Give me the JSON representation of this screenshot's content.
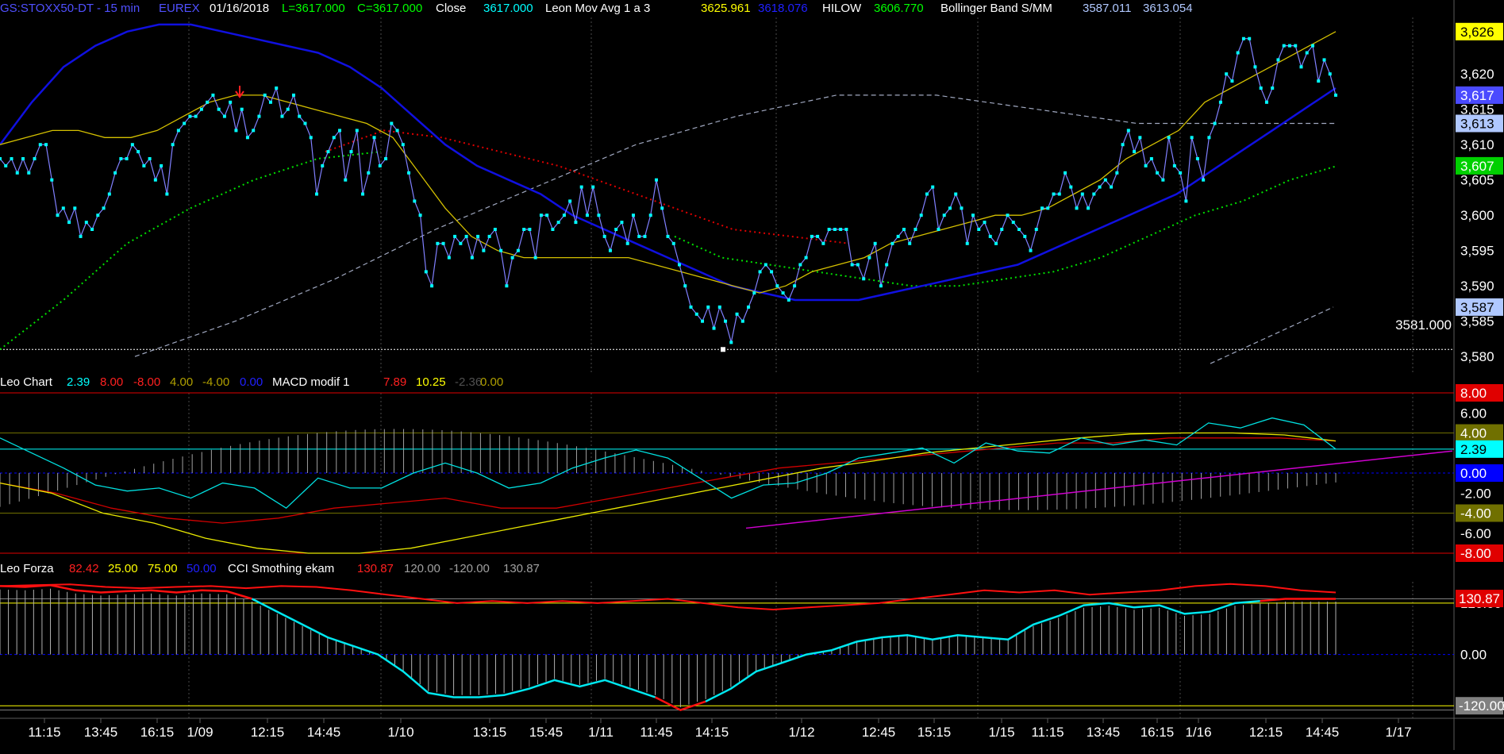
{
  "header": {
    "symbol": "GS:STOXX50-DT - 15 min",
    "exchange": "EUREX",
    "date": "01/16/2018",
    "low": "L=3617.000",
    "close": "C=3617.000",
    "close_label": "Close",
    "close_value": "3617.000",
    "ma_label": "Leon Mov Avg 1 a 3",
    "ma_val1": "3625.961",
    "ma_val2": "3618.076",
    "hilow_label": "HILOW",
    "hilow_val": "3606.770",
    "bb_label": "Bollinger Band S/MM",
    "bb_val1": "3587.011",
    "bb_val2": "3613.054"
  },
  "panel2_header": {
    "name": "Leo Chart",
    "v1": "2.39",
    "v2": "8.00",
    "v3": "-8.00",
    "v4": "4.00",
    "v5": "-4.00",
    "v6": "0.00",
    "macd_label": "MACD modif 1",
    "m1": "7.89",
    "m2": "10.25",
    "m3": "-2.36",
    "m4": "0.00"
  },
  "panel3_header": {
    "name": "Leo Forza",
    "v1": "82.42",
    "v2": "25.00",
    "v3": "75.00",
    "v4": "50.00",
    "cci_label": "CCI Smothing ekam",
    "c1": "130.87",
    "c2": "120.00",
    "c3": "-120.00",
    "c4": "130.87"
  },
  "price_axis": {
    "ticks": [
      "3,620",
      "3,615",
      "3,610",
      "3,605",
      "3,600",
      "3,595",
      "3,590",
      "3,585",
      "3,580"
    ],
    "tick_values": [
      3620,
      3615,
      3610,
      3605,
      3600,
      3595,
      3590,
      3585,
      3580
    ],
    "badges": [
      {
        "text": "3,626",
        "value": 3626,
        "bg": "#ffff00",
        "fg": "#000000"
      },
      {
        "text": "3,617",
        "value": 3617,
        "bg": "#4a4aff",
        "fg": "#ffffff"
      },
      {
        "text": "3,613",
        "value": 3613,
        "bg": "#b0c8ff",
        "fg": "#000000"
      },
      {
        "text": "3,607",
        "value": 3607,
        "bg": "#00d000",
        "fg": "#ffffff"
      },
      {
        "text": "3,587",
        "value": 3587,
        "bg": "#b0c8ff",
        "fg": "#000000"
      }
    ],
    "ref_line_label": "3581.000",
    "ref_line_value": 3581
  },
  "panel2_axis": {
    "ticks": [
      "6.00",
      "-2.00",
      "-6.00"
    ],
    "tick_values": [
      6,
      -2,
      -6
    ],
    "badges": [
      {
        "text": "8.00",
        "value": 8,
        "bg": "#e00000",
        "fg": "#ffffff"
      },
      {
        "text": "4.00",
        "value": 4,
        "bg": "#707000",
        "fg": "#ffffff"
      },
      {
        "text": "2.39",
        "value": 2.39,
        "bg": "#00ffff",
        "fg": "#000000"
      },
      {
        "text": "0.00",
        "value": 0,
        "bg": "#0000ff",
        "fg": "#ffffff"
      },
      {
        "text": "-4.00",
        "value": -4,
        "bg": "#707000",
        "fg": "#ffffff"
      },
      {
        "text": "-8.00",
        "value": -8,
        "bg": "#e00000",
        "fg": "#ffffff"
      }
    ]
  },
  "panel3_axis": {
    "ticks": [
      "0.00",
      "120.00",
      "-120.00"
    ],
    "tick_values": [
      0,
      120,
      -120
    ],
    "badges": [
      {
        "text": "130.87",
        "value": 130.87,
        "bg": "#e00000",
        "fg": "#ffffff"
      },
      {
        "text": "-120.00",
        "value": -120,
        "bg": "#808080",
        "fg": "#ffffff"
      }
    ]
  },
  "time_axis": {
    "labels": [
      "11:15",
      "13:45",
      "16:15",
      "1/09",
      "12:15",
      "14:45",
      "1/10",
      "13:15",
      "15:45",
      "1/11",
      "11:45",
      "14:15",
      "1/12",
      "12:45",
      "15:15",
      "1/15",
      "11:15",
      "13:45",
      "16:15",
      "1/16",
      "12:15",
      "14:45",
      "1/17"
    ],
    "separator_labels": [
      "1/09",
      "1/10",
      "1/11",
      "1/12",
      "1/15",
      "1/16",
      "1/17"
    ]
  },
  "colors": {
    "price": "#8080ff",
    "price_marker": "#00ffff",
    "ma_blue": "#1010e0",
    "ma_yellow": "#d4c000",
    "hilow_green": "#00e000",
    "hilow_red": "#e00000",
    "bollinger": "#a0a8c0",
    "grid": "#4a4a4a",
    "macd_cyan": "#00e0e0",
    "macd_red": "#d00000",
    "macd_yellow": "#e8e800",
    "magenta": "#d000d0",
    "histogram": "#a0a0a0",
    "cci_cyan": "#00e8f0",
    "cci_red": "#ff1010",
    "cci_white": "#d0d0d0"
  },
  "chart_data": [
    {
      "type": "line",
      "panel": "price",
      "ylim": [
        3578,
        3628
      ],
      "price_close": [
        3608,
        3607,
        3608,
        3606,
        3608,
        3606,
        3608,
        3610,
        3610,
        3605,
        3600,
        3601,
        3599,
        3601,
        3597,
        3599,
        3598,
        3600,
        3601,
        3603,
        3606,
        3608,
        3608,
        3610,
        3609,
        3607,
        3608,
        3605,
        3607,
        3603,
        3610,
        3612,
        3613,
        3614,
        3614,
        3615,
        3616,
        3617,
        3615,
        3614,
        3616,
        3612,
        3615,
        3611,
        3612,
        3614,
        3617,
        3616,
        3618,
        3614,
        3615,
        3617,
        3614,
        3613,
        3611,
        3603,
        3607,
        3609,
        3611,
        3612,
        3605,
        3609,
        3612,
        3603,
        3606,
        3611,
        3607,
        3608,
        3613,
        3612,
        3610,
        3606,
        3602,
        3600,
        3592,
        3590,
        3596,
        3596,
        3594,
        3597,
        3596,
        3597,
        3594,
        3597,
        3595,
        3597,
        3598,
        3595,
        3590,
        3594,
        3595,
        3598,
        3598,
        3594,
        3600,
        3600,
        3598,
        3599,
        3600,
        3602,
        3599,
        3604,
        3600,
        3604,
        3600,
        3597,
        3595,
        3598,
        3599,
        3596,
        3600,
        3597,
        3597,
        3600,
        3605,
        3601,
        3597,
        3596,
        3593,
        3590,
        3587,
        3586,
        3585,
        3587,
        3584,
        3587,
        3585,
        3582,
        3586,
        3585,
        3587,
        3589,
        3592,
        3593,
        3592,
        3590,
        3589,
        3588,
        3590,
        3593,
        3594,
        3597,
        3597,
        3596,
        3598,
        3598,
        3598,
        3598,
        3593,
        3593,
        3591,
        3594,
        3596,
        3590,
        3593,
        3596,
        3597,
        3598,
        3596,
        3598,
        3600,
        3603,
        3604,
        3598,
        3600,
        3601,
        3603,
        3601,
        3596,
        3600,
        3598,
        3599,
        3597,
        3596,
        3598,
        3600,
        3599,
        3598,
        3597,
        3595,
        3598,
        3601,
        3601,
        3603,
        3603,
        3606,
        3604,
        3601,
        3603,
        3601,
        3603,
        3604,
        3605,
        3604,
        3606,
        3610,
        3612,
        3609,
        3611,
        3607,
        3608,
        3606,
        3605,
        3611,
        3607,
        3606,
        3602,
        3611,
        3608,
        3605,
        3611,
        3613,
        3616,
        3620,
        3619,
        3623,
        3625,
        3625,
        3621,
        3618,
        3616,
        3618,
        3622,
        3624,
        3624,
        3624,
        3621,
        3623,
        3624,
        3619,
        3622,
        3620,
        3617
      ],
      "ma_yellow": [
        3610,
        3611,
        3612,
        3612,
        3611,
        3611,
        3612,
        3614,
        3616,
        3617,
        3617,
        3616,
        3615,
        3614,
        3613,
        3611,
        3606,
        3601,
        3597,
        3595,
        3594,
        3594,
        3594,
        3594,
        3594,
        3593,
        3592,
        3591,
        3590,
        3589,
        3590,
        3592,
        3593,
        3594,
        3596,
        3597,
        3598,
        3599,
        3600,
        3600,
        3601,
        3603,
        3605,
        3608,
        3610,
        3612,
        3616,
        3618,
        3620,
        3622,
        3624,
        3626
      ],
      "ma_blue": [
        3610,
        3616,
        3621,
        3624,
        3626,
        3627,
        3627,
        3626,
        3625,
        3624,
        3623,
        3621,
        3618,
        3614,
        3610,
        3607,
        3605,
        3603,
        3600,
        3598,
        3596,
        3594,
        3592,
        3590,
        3589,
        3588,
        3588,
        3588,
        3589,
        3590,
        3591,
        3592,
        3593,
        3595,
        3597,
        3599,
        3601,
        3603,
        3606,
        3609,
        3612,
        3615,
        3618
      ],
      "hilow_green": [
        3581,
        3588,
        3596,
        3601,
        3605,
        3608,
        3609,
        3597,
        3594,
        3593,
        3592,
        3591,
        3590,
        3590,
        3591,
        3592,
        3594,
        3597,
        3600,
        3602,
        3605,
        3607
      ],
      "hilow_red": [
        3609,
        3612,
        3611,
        3609,
        3607,
        3604,
        3601,
        3598,
        3597,
        3596
      ],
      "bollinger_upper": [
        3580,
        3585,
        3591,
        3598,
        3604,
        3610,
        3614,
        3617,
        3617,
        3615,
        3613,
        3613,
        3613
      ],
      "bollinger_lower": [
        3579,
        3583,
        3587
      ]
    },
    {
      "type": "line",
      "panel": "Leo Chart / MACD modif 1",
      "ylim": [
        -8,
        8
      ],
      "series": [
        {
          "name": "Leo Chart",
          "values": [
            3.5,
            2,
            0.5,
            -1.2,
            -1.8,
            -1.5,
            -2.5,
            -1,
            -1.5,
            -3.5,
            -0.5,
            -1.5,
            -1.5,
            0,
            1,
            0,
            -1.5,
            -1,
            0.5,
            1.5,
            2.3,
            1.5,
            -0.5,
            -2.5,
            -1.2,
            -1,
            0,
            1.5,
            2,
            2.5,
            1,
            3,
            2.2,
            2,
            3.5,
            2.8,
            3.3,
            2.8,
            5,
            4.5,
            5.5,
            4.8,
            2.39
          ]
        },
        {
          "name": "MACD modif 1",
          "values": [
            -1,
            -2,
            -4,
            -5,
            -6.5,
            -7.5,
            -8,
            -8,
            -7.5,
            -6.5,
            -5.5,
            -4.5,
            -3.5,
            -2.5,
            -1.5,
            -0.5,
            0.5,
            1.2,
            2,
            2.5,
            3,
            3.5,
            3.9,
            4,
            4,
            3.8,
            3.2
          ]
        },
        {
          "name": "",
          "values": [
            -1,
            -2,
            -3.5,
            -4.5,
            -5,
            -4.5,
            -3.5,
            -3,
            -2.5,
            -3.5,
            -3.5,
            -2.5,
            -1.5,
            -0.5,
            0.5,
            1,
            1.5,
            2,
            2.5,
            3,
            3,
            3.5,
            3.5,
            3.5,
            3.2
          ]
        }
      ]
    },
    {
      "type": "line",
      "panel": "Leo Forza / CCI Smothing ekam",
      "ylim": [
        -140,
        170
      ],
      "series": [
        {
          "name": "Leo Forza",
          "values": [
            160,
            158,
            162,
            150,
            145,
            148,
            150,
            145,
            150,
            148,
            130,
            100,
            70,
            40,
            20,
            0,
            -40,
            -90,
            -100,
            -100,
            -95,
            -80,
            -60,
            -75,
            -60,
            -80,
            -100,
            -130,
            -110,
            -80,
            -40,
            -20,
            0,
            10,
            30,
            40,
            45,
            35,
            45,
            40,
            35,
            70,
            90,
            115,
            120,
            110,
            115,
            95,
            100,
            120,
            125,
            130,
            130,
            130
          ]
        },
        {
          "name": "CCI Smothing ekam",
          "values": [
            160,
            162,
            164,
            158,
            155,
            158,
            160,
            155,
            160,
            158,
            150,
            140,
            130,
            120,
            125,
            120,
            125,
            120,
            125,
            130,
            120,
            110,
            105,
            110,
            115,
            120,
            130,
            140,
            150,
            145,
            150,
            140,
            145,
            150,
            160,
            165,
            160,
            150,
            145
          ]
        }
      ]
    }
  ]
}
